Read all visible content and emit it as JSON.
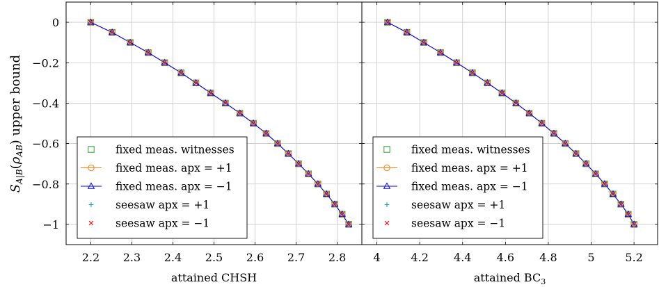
{
  "figure": {
    "ylabel": "S_{A|B}(ρ_{AB}) upper bound",
    "legend_entries": [
      {
        "label": "fixed meas. witnesses",
        "color": "#2ca02c",
        "marker": "square",
        "line": false
      },
      {
        "label": "fixed meas. apx = +1",
        "color": "#ff7f0e",
        "marker": "circle",
        "line": true
      },
      {
        "label": "fixed meas. apx = −1",
        "color": "#0000ff",
        "marker": "triangle",
        "line": true
      },
      {
        "label": "seesaw apx = +1",
        "color": "#17a3a3",
        "marker": "plus",
        "line": false
      },
      {
        "label": "seesaw apx = −1",
        "color": "#ff0000",
        "marker": "cross",
        "line": false
      }
    ]
  },
  "chart_data": [
    {
      "type": "line",
      "xlabel": "attained CHSH",
      "ylabel": "S_{A|B}(ρ_{AB}) upper bound",
      "xlim": [
        2.14,
        2.86
      ],
      "ylim": [
        -1.1,
        0.1
      ],
      "xticks": [
        "2.2",
        "2.3",
        "2.4",
        "2.5",
        "2.6",
        "2.7",
        "2.8"
      ],
      "yticks": [
        "0",
        "−0.2",
        "−0.4",
        "−0.6",
        "−0.8",
        "−1"
      ],
      "grid": true,
      "legend": "bottom-left",
      "x": [
        2.2,
        2.252,
        2.296,
        2.34,
        2.38,
        2.42,
        2.456,
        2.492,
        2.528,
        2.563,
        2.596,
        2.627,
        2.655,
        2.681,
        2.706,
        2.73,
        2.753,
        2.774,
        2.794,
        2.812,
        2.828
      ],
      "y": [
        0,
        -0.05,
        -0.1,
        -0.15,
        -0.2,
        -0.25,
        -0.3,
        -0.35,
        -0.4,
        -0.45,
        -0.5,
        -0.55,
        -0.6,
        -0.65,
        -0.7,
        -0.75,
        -0.8,
        -0.85,
        -0.9,
        -0.95,
        -1.0
      ],
      "series": [
        {
          "name": "fixed meas. witnesses",
          "color": "#2ca02c",
          "marker": "square"
        },
        {
          "name": "fixed meas. apx = +1",
          "color": "#ff7f0e",
          "marker": "circle"
        },
        {
          "name": "fixed meas. apx = −1",
          "color": "#0000ff",
          "marker": "triangle"
        },
        {
          "name": "seesaw apx = +1",
          "color": "#17a3a3",
          "marker": "plus"
        },
        {
          "name": "seesaw apx = −1",
          "color": "#ff0000",
          "marker": "cross"
        }
      ]
    },
    {
      "type": "line",
      "xlabel": "attained BC₃",
      "ylabel": "",
      "xlim": [
        3.93,
        5.31
      ],
      "ylim": [
        -1.1,
        0.1
      ],
      "xticks": [
        "4",
        "4.2",
        "4.4",
        "4.6",
        "4.8",
        "5",
        "5.2"
      ],
      "yticks": [],
      "grid": true,
      "legend": "bottom-left",
      "x": [
        4.05,
        4.14,
        4.219,
        4.297,
        4.372,
        4.446,
        4.516,
        4.584,
        4.649,
        4.711,
        4.77,
        4.826,
        4.879,
        4.929,
        4.976,
        5.021,
        5.063,
        5.102,
        5.139,
        5.173,
        5.2
      ],
      "y": [
        0,
        -0.05,
        -0.1,
        -0.15,
        -0.2,
        -0.25,
        -0.3,
        -0.35,
        -0.4,
        -0.45,
        -0.5,
        -0.55,
        -0.6,
        -0.65,
        -0.7,
        -0.75,
        -0.8,
        -0.85,
        -0.9,
        -0.95,
        -1.0
      ],
      "series": [
        {
          "name": "fixed meas. witnesses",
          "color": "#2ca02c",
          "marker": "square"
        },
        {
          "name": "fixed meas. apx = +1",
          "color": "#ff7f0e",
          "marker": "circle"
        },
        {
          "name": "fixed meas. apx = −1",
          "color": "#0000ff",
          "marker": "triangle"
        },
        {
          "name": "seesaw apx = +1",
          "color": "#17a3a3",
          "marker": "plus"
        },
        {
          "name": "seesaw apx = −1",
          "color": "#ff0000",
          "marker": "cross"
        }
      ]
    }
  ]
}
